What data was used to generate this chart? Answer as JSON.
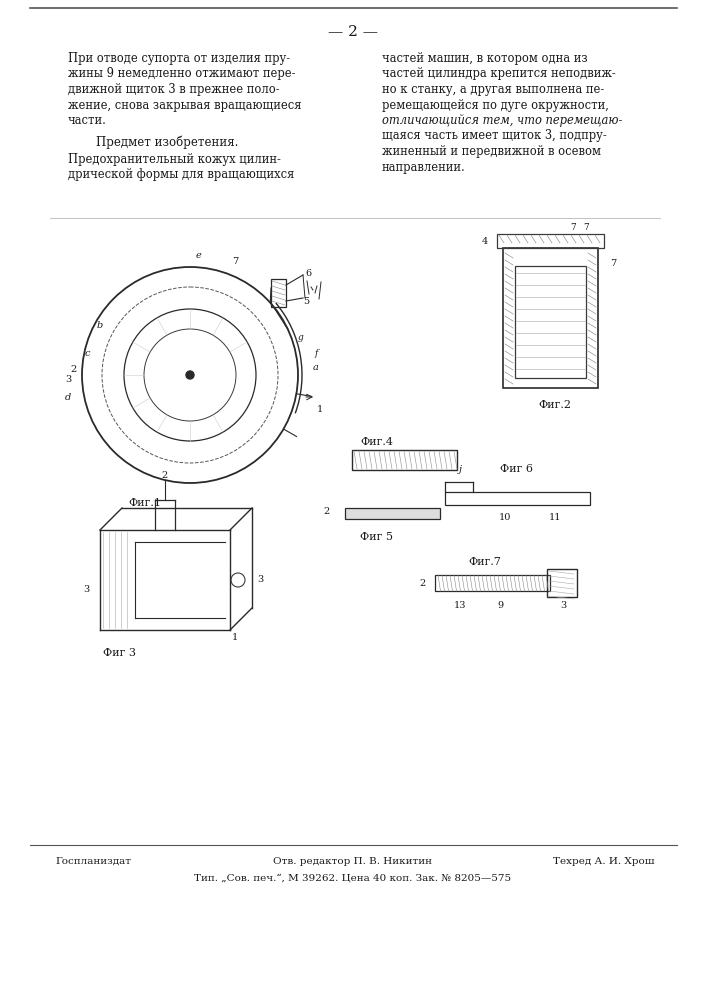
{
  "page_number": "2",
  "bg_color": "#ffffff",
  "text_color": "#1a1a1a",
  "left_column_text": [
    "При отводе супорта от изделия пру-",
    "жины 9 немедленно отжимают пере-",
    "движной щиток 3 в прежнее поло-",
    "жение, снова закрывая вращающиеся",
    "части."
  ],
  "predmet_header": "Предмет изобретения.",
  "predmet_text": [
    "Предохранительный кожух цилин-",
    "дрической формы для вращающихся"
  ],
  "right_column_text_normal": [
    "частей машин, в котором одна из",
    "частей цилиндра крепится неподвиж-",
    "но к станку, а другая выполнена пе-",
    "ремещающейся по дуге окружности,",
    "щаяся часть имеет щиток 3, подпру-",
    "жиненный и передвижной в осевом",
    "направлении."
  ],
  "right_italic_line": "отличающийся тем, что перемещаю-",
  "fig1_label": "Фиг.1",
  "fig2_label": "Фиг.2",
  "fig3_label": "Фиг 3",
  "fig4_label": "Фиг.4",
  "fig5_label": "Фиг 5",
  "fig6_label": "Фиг 6",
  "fig7_label": "Фиг.7",
  "footer_left": "Госпланиздат",
  "footer_center": "Отв. редактор П. В. Никитин",
  "footer_right": "Техред А. И. Хрош",
  "footer_bottom": "Тип. „Сов. печ.“, М 39262. Цена 40 коп. Зак. № 8205—575"
}
